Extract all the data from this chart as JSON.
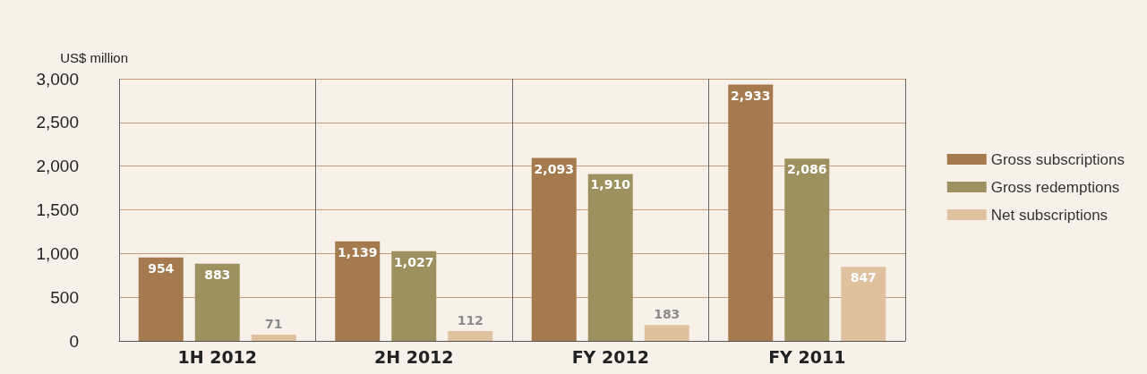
{
  "chart_data": {
    "type": "bar",
    "ylabel": "US$ million",
    "categories": [
      "1H 2012",
      "2H 2012",
      "FY 2012",
      "FY 2011"
    ],
    "series": [
      {
        "name": "Gross subscriptions",
        "color": "#a67a4f",
        "values": [
          954,
          1139,
          2093,
          2933
        ],
        "value_labels": [
          "954",
          "1,139",
          "2,093",
          "2,933"
        ]
      },
      {
        "name": "Gross redemptions",
        "color": "#9d915f",
        "values": [
          883,
          1027,
          1910,
          2086
        ],
        "value_labels": [
          "883",
          "1,027",
          "1,910",
          "2,086"
        ]
      },
      {
        "name": "Net subscriptions",
        "color": "#dfc19f",
        "values": [
          71,
          112,
          183,
          847
        ],
        "value_labels": [
          "71",
          "112",
          "183",
          "847"
        ]
      }
    ],
    "ylim": [
      0,
      3000
    ],
    "yticks": [
      0,
      500,
      {
        "value": 1000,
        "label": "1,000"
      },
      {
        "value": 1500,
        "label": "1,500"
      },
      {
        "value": 2000,
        "label": "2,000"
      },
      {
        "value": 2500,
        "label": "2,500"
      },
      {
        "value": 3000,
        "label": "3,000"
      }
    ],
    "grid": true,
    "legend": "right"
  }
}
